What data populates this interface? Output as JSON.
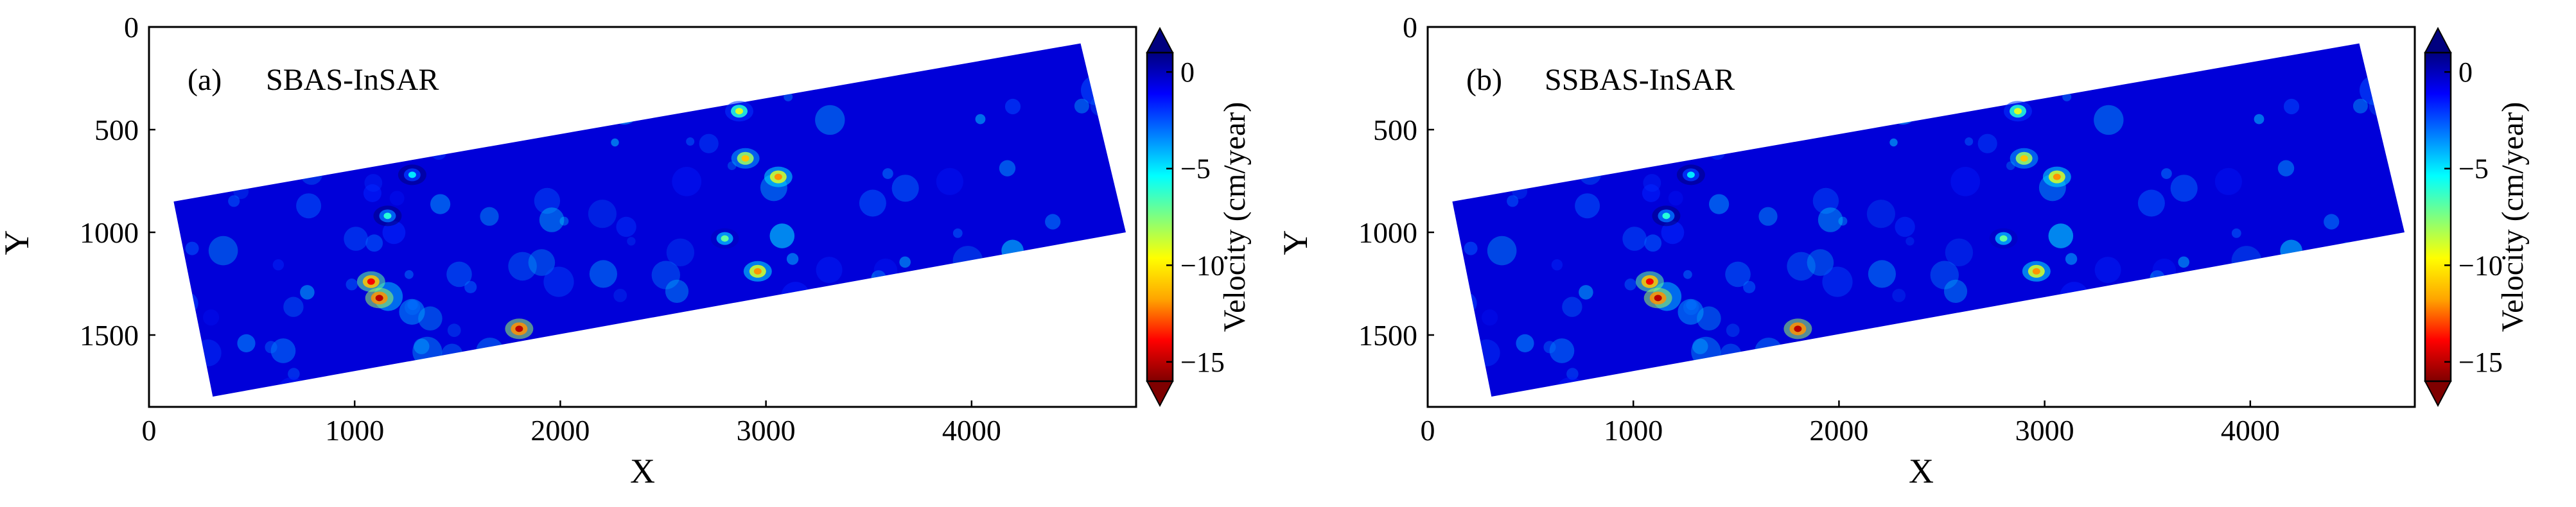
{
  "chart_data": [
    {
      "type": "heatmap",
      "panel_label": "(a)",
      "title": "SBAS-InSAR",
      "xlabel": "X",
      "ylabel": "Y",
      "xlim": [
        0,
        4800
      ],
      "ylim": [
        1850,
        0
      ],
      "xticks": [
        "0",
        "1000",
        "2000",
        "3000",
        "4000"
      ],
      "yticks": [
        "0",
        "500",
        "1000",
        "1500"
      ],
      "colorbar": {
        "label": "Velocity (cm/year)",
        "range": [
          -16,
          1
        ],
        "ticks": [
          "0",
          "-5",
          "-10",
          "-15"
        ],
        "colors": [
          "#7f0000",
          "#ff0000",
          "#ffa500",
          "#ffff00",
          "#7fff7f",
          "#00ffff",
          "#007fff",
          "#0000ff",
          "#00007f"
        ]
      },
      "coverage_corners": [
        [
          120,
          850
        ],
        [
          4530,
          80
        ],
        [
          4750,
          1000
        ],
        [
          310,
          1800
        ]
      ],
      "hotspots": [
        {
          "x": 1080,
          "y": 1240,
          "velocity": -14
        },
        {
          "x": 1120,
          "y": 1320,
          "velocity": -15
        },
        {
          "x": 1800,
          "y": 1470,
          "velocity": -15
        },
        {
          "x": 2870,
          "y": 410,
          "velocity": -9
        },
        {
          "x": 2900,
          "y": 640,
          "velocity": -11
        },
        {
          "x": 3060,
          "y": 730,
          "velocity": -12
        },
        {
          "x": 2960,
          "y": 1190,
          "velocity": -12
        },
        {
          "x": 2800,
          "y": 1030,
          "velocity": -7
        },
        {
          "x": 1160,
          "y": 920,
          "velocity": -6
        },
        {
          "x": 1280,
          "y": 720,
          "velocity": -5
        }
      ]
    },
    {
      "type": "heatmap",
      "panel_label": "(b)",
      "title": "SSBAS-InSAR",
      "xlabel": "X",
      "ylabel": "Y",
      "xlim": [
        0,
        4800
      ],
      "ylim": [
        1850,
        0
      ],
      "xticks": [
        "0",
        "1000",
        "2000",
        "3000",
        "4000"
      ],
      "yticks": [
        "0",
        "500",
        "1000",
        "1500"
      ],
      "colorbar": {
        "label": "Velocity (cm/year)",
        "range": [
          -16,
          1
        ],
        "ticks": [
          "0",
          "-5",
          "-10",
          "-15"
        ],
        "colors": [
          "#7f0000",
          "#ff0000",
          "#ffa500",
          "#ffff00",
          "#7fff7f",
          "#00ffff",
          "#007fff",
          "#0000ff",
          "#00007f"
        ]
      },
      "coverage_corners": [
        [
          120,
          850
        ],
        [
          4530,
          80
        ],
        [
          4750,
          1000
        ],
        [
          310,
          1800
        ]
      ],
      "hotspots": [
        {
          "x": 1080,
          "y": 1240,
          "velocity": -14
        },
        {
          "x": 1120,
          "y": 1320,
          "velocity": -15
        },
        {
          "x": 1800,
          "y": 1470,
          "velocity": -15
        },
        {
          "x": 2870,
          "y": 410,
          "velocity": -9
        },
        {
          "x": 2900,
          "y": 640,
          "velocity": -11
        },
        {
          "x": 3060,
          "y": 730,
          "velocity": -12
        },
        {
          "x": 2960,
          "y": 1190,
          "velocity": -12
        },
        {
          "x": 2800,
          "y": 1030,
          "velocity": -7
        },
        {
          "x": 1160,
          "y": 920,
          "velocity": -6
        },
        {
          "x": 1280,
          "y": 720,
          "velocity": -5
        }
      ]
    }
  ]
}
